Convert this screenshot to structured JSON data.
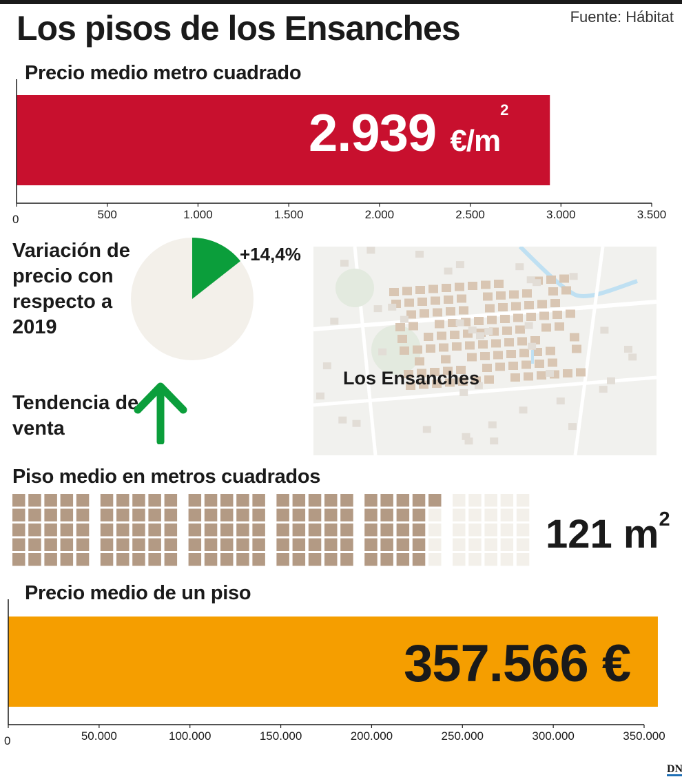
{
  "title": "Los pisos de los Ensanches",
  "source": "Fuente: Hábitat",
  "colors": {
    "red_bar": "#c8102e",
    "orange_bar": "#f59e00",
    "pie_green": "#0b9e3b",
    "pie_bg": "#f3f0ea",
    "arrow_green": "#0b9e3b",
    "waffle_filled": "#b39a84",
    "waffle_empty": "#f3f0ea",
    "map_block": "#d9c6b3",
    "map_bg": "#f1f1ee"
  },
  "price_m2": {
    "section_title": "Precio medio metro cuadrado",
    "value_text": "2.939",
    "unit_text": "€/m",
    "unit_sup": "2"
  },
  "variation": {
    "label": "Variación de precio con respecto a 2019",
    "value_text": "+14,4%"
  },
  "trend": {
    "label": "Tendencia de venta",
    "icon": "arrow-up-icon"
  },
  "map": {
    "label": "Los Ensanches"
  },
  "surface": {
    "section_title": "Piso medio en metros cuadrados",
    "value_text": "121 m",
    "value_sup": "2"
  },
  "flat_price": {
    "section_title": "Precio medio de un piso",
    "value_text": "357.566 €"
  },
  "chart_data": [
    {
      "type": "bar",
      "orientation": "horizontal",
      "title": "Precio medio metro cuadrado",
      "values": [
        2939
      ],
      "unit": "€/m2",
      "xlim": [
        0,
        3500
      ],
      "ticks": [
        0,
        500,
        1000,
        1500,
        2000,
        2500,
        3000,
        3500
      ],
      "tick_labels": [
        "0",
        "500",
        "1.000",
        "1.500",
        "2.000",
        "2.500",
        "3.000",
        "3.500"
      ],
      "data_label": "2.939 €/m2"
    },
    {
      "type": "pie",
      "title": "Variación de precio con respecto a 2019",
      "values": [
        14.4,
        85.6
      ],
      "data_label": "+14,4%"
    },
    {
      "type": "waffle",
      "title": "Piso medio en metros cuadrados",
      "value": 121,
      "total_cells": 150,
      "unit": "m2",
      "data_label": "121 m2"
    },
    {
      "type": "bar",
      "orientation": "horizontal",
      "title": "Precio medio de un piso",
      "values": [
        357566
      ],
      "unit": "€",
      "xlim": [
        0,
        350000
      ],
      "ticks": [
        0,
        50000,
        100000,
        150000,
        200000,
        250000,
        300000,
        350000
      ],
      "tick_labels": [
        "0",
        "50.000",
        "100.000",
        "150.000",
        "200.000",
        "250.000",
        "300.000",
        "350.000"
      ],
      "data_label": "357.566 €"
    }
  ]
}
